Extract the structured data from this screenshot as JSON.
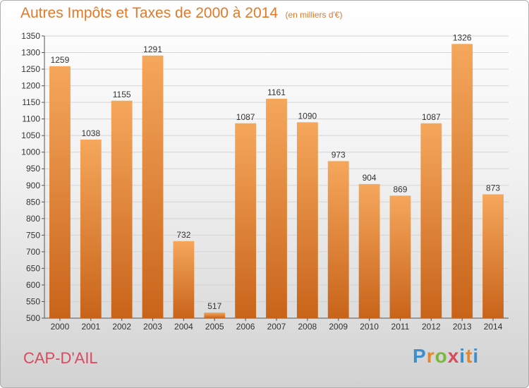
{
  "chart_data": {
    "type": "bar",
    "title": "Autres Impôts et Taxes de 2000 à 2014",
    "unit": "(en milliers d'€)",
    "categories": [
      "2000",
      "2001",
      "2002",
      "2003",
      "2004",
      "2005",
      "2006",
      "2007",
      "2008",
      "2009",
      "2010",
      "2011",
      "2012",
      "2013",
      "2014"
    ],
    "values": [
      1259,
      1038,
      1155,
      1291,
      732,
      517,
      1087,
      1161,
      1090,
      973,
      904,
      869,
      1087,
      1326,
      873
    ],
    "ylim": [
      500,
      1350
    ],
    "ytick_step": 50,
    "grid": "horizontal",
    "bar_color": "#e8852a",
    "bar_color_light": "#f5a75c",
    "bar_color_dark": "#c8641a"
  },
  "footer": {
    "location": "CAP-D'AIL",
    "brand": "Proxiti"
  }
}
